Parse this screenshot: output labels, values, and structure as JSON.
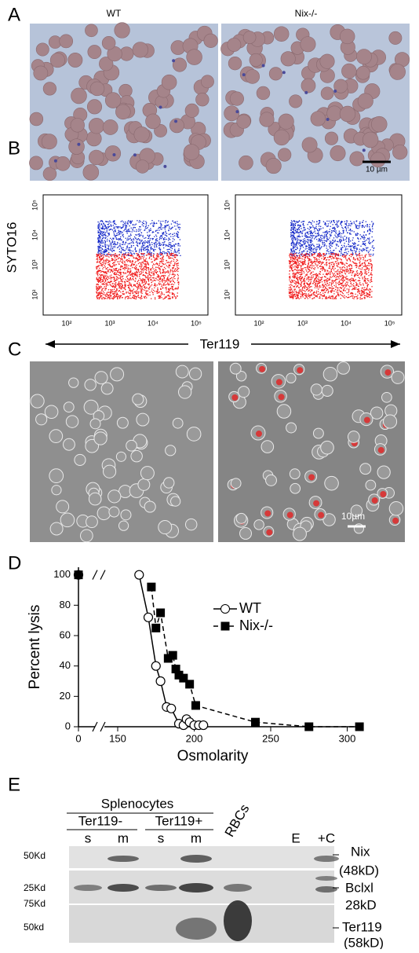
{
  "figure": {
    "a": {
      "label": "A",
      "left_title": "WT",
      "right_title": "Nix-/-",
      "scale_bar": "10 µm"
    },
    "b": {
      "label": "B",
      "y_label": "SYTO16",
      "x_label": "Ter119",
      "tick_labels": [
        "10²",
        "10³",
        "10⁴",
        "10⁵"
      ]
    },
    "c": {
      "label": "C",
      "scale_bar": "10µm"
    },
    "d": {
      "label": "D"
    },
    "e": {
      "label": "E",
      "group": "Splenocytes",
      "subgroups": [
        "Ter119-",
        "Ter119+"
      ],
      "lanes": [
        "s",
        "m",
        "s",
        "m"
      ],
      "rbc": "RBCs",
      "empty": "E",
      "control": "+C",
      "left_markers": [
        "50Kd",
        "25Kd",
        "75Kd",
        "50kd"
      ],
      "right_labels": [
        "Nix",
        "(48kD)",
        "Bclxl",
        "28kD",
        "Ter119",
        "(58kD)"
      ]
    }
  },
  "chart_data": {
    "type": "line",
    "x_label": "Osmolarity",
    "y_label": "Percent lysis",
    "xlim": [
      0,
      310
    ],
    "xbreak": [
      0,
      150
    ],
    "ylim": [
      0,
      105
    ],
    "xticks": [
      0,
      150,
      200,
      250,
      300
    ],
    "yticks": [
      0,
      20,
      40,
      60,
      80,
      100
    ],
    "series": [
      {
        "name": "WT",
        "color": "#000000",
        "marker": "circle",
        "line": "solid",
        "x": [
          0,
          164,
          170,
          175,
          178,
          182,
          185,
          190,
          193,
          195,
          197,
          200,
          203,
          206
        ],
        "values": [
          100,
          100,
          72,
          40,
          30,
          13,
          12,
          2,
          1,
          5,
          3,
          1,
          1,
          1
        ]
      },
      {
        "name": "Nix-/-",
        "color": "#000000",
        "marker": "square",
        "line": "dashed",
        "x": [
          0,
          172,
          175,
          178,
          183,
          186,
          188,
          190,
          193,
          197,
          201,
          240,
          275,
          308
        ],
        "values": [
          100,
          92,
          65,
          75,
          45,
          47,
          38,
          34,
          32,
          28,
          14,
          3,
          0,
          0
        ]
      }
    ]
  }
}
